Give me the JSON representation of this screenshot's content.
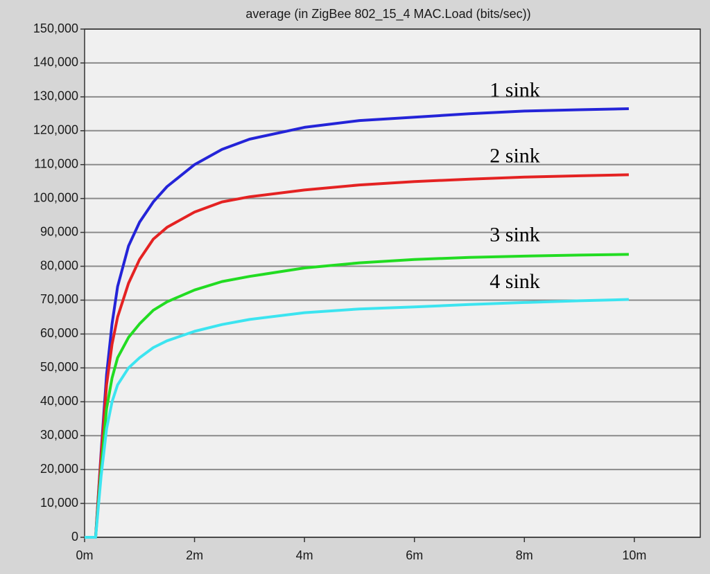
{
  "chart_data": {
    "type": "line",
    "title": "average (in ZigBee 802_15_4 MAC.Load (bits/sec))",
    "x": [
      0,
      0.1,
      0.2,
      0.3,
      0.4,
      0.5,
      0.6,
      0.8,
      1,
      1.25,
      1.5,
      2,
      2.5,
      3,
      4,
      5,
      6,
      7,
      8,
      9,
      9.9
    ],
    "series": [
      {
        "name": "1 sink",
        "color": "#2424d8",
        "values": [
          0,
          0,
          0,
          25000,
          48000,
          63000,
          74000,
          86000,
          93000,
          99000,
          103500,
          110000,
          114500,
          117500,
          121000,
          123000,
          124000,
          125000,
          125800,
          126200,
          126500
        ]
      },
      {
        "name": "2 sink",
        "color": "#e42222",
        "values": [
          0,
          0,
          0,
          24000,
          45000,
          57000,
          65000,
          75000,
          82000,
          88000,
          91500,
          96000,
          99000,
          100500,
          102500,
          104000,
          105000,
          105700,
          106300,
          106700,
          107000
        ]
      },
      {
        "name": "3  sink",
        "color": "#22dc22",
        "values": [
          0,
          0,
          0,
          20000,
          38000,
          47000,
          53000,
          59000,
          63000,
          67000,
          69500,
          73000,
          75500,
          77000,
          79500,
          81000,
          82000,
          82600,
          83000,
          83300,
          83500
        ]
      },
      {
        "name": "4  sink",
        "color": "#3ce4f0",
        "values": [
          0,
          0,
          0,
          18000,
          32000,
          40000,
          45000,
          50000,
          53000,
          56000,
          58000,
          60800,
          62800,
          64300,
          66300,
          67400,
          68000,
          68700,
          69300,
          69800,
          70200
        ]
      }
    ],
    "xlim": [
      0,
      11.2
    ],
    "xticks": [
      {
        "value": 0,
        "label": "0m"
      },
      {
        "value": 2,
        "label": "2m"
      },
      {
        "value": 4,
        "label": "4m"
      },
      {
        "value": 6,
        "label": "6m"
      },
      {
        "value": 8,
        "label": "8m"
      },
      {
        "value": 10,
        "label": "10m"
      }
    ],
    "ylim": [
      0,
      150000
    ],
    "yticks": [
      0,
      {
        "value": 10000,
        "label": "10,000"
      },
      {
        "value": 20000,
        "label": "20,000"
      },
      {
        "value": 30000,
        "label": "30,000"
      },
      {
        "value": 40000,
        "label": "40,000"
      },
      {
        "value": 50000,
        "label": "50,000"
      },
      {
        "value": 60000,
        "label": "60,000"
      },
      {
        "value": 70000,
        "label": "70,000"
      },
      {
        "value": 80000,
        "label": "80,000"
      },
      {
        "value": 90000,
        "label": "90,000"
      },
      {
        "value": 100000,
        "label": "100,000"
      },
      {
        "value": 110000,
        "label": "110,000"
      },
      {
        "value": 120000,
        "label": "120,000"
      },
      {
        "value": 130000,
        "label": "130,000"
      },
      {
        "value": 140000,
        "label": "140,000"
      },
      {
        "value": 150000,
        "label": "150,000"
      }
    ],
    "grid": true
  }
}
